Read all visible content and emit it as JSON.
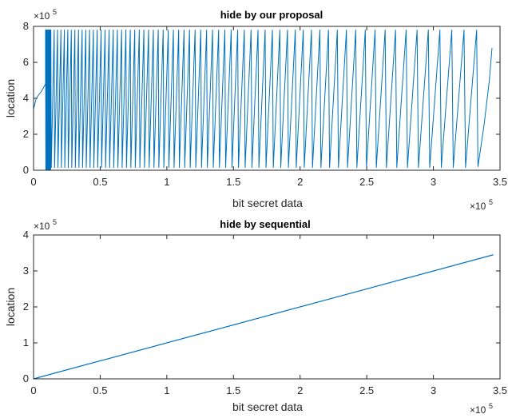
{
  "chart_data": [
    {
      "type": "line",
      "title": "hide by our proposal",
      "xlabel": "bit secret data",
      "ylabel": "location",
      "xlim": [
        0,
        3.5
      ],
      "ylim": [
        0,
        8
      ],
      "x_multiplier": "×10",
      "x_exponent": "5",
      "y_multiplier": "×10",
      "y_exponent": "5",
      "xticks": [
        "0",
        "0.5",
        "1",
        "1.5",
        "2",
        "2.5",
        "3",
        "3.5"
      ],
      "yticks": [
        "0",
        "2",
        "4",
        "6",
        "8"
      ],
      "x_range_data": [
        0,
        3.44
      ],
      "y_range_data": [
        0,
        7.8
      ],
      "pattern": "sawtooth; dense wraparound cycles near x≈0.08–0.12, widening cycle length toward x≈3.44",
      "series": [
        {
          "color": "#0072BD"
        }
      ]
    },
    {
      "type": "line",
      "title": "hide by sequential",
      "xlabel": "bit secret data",
      "ylabel": "location",
      "xlim": [
        0,
        3.5
      ],
      "ylim": [
        0,
        4
      ],
      "x_multiplier": "×10",
      "x_exponent": "5",
      "y_multiplier": "×10",
      "y_exponent": "5",
      "xticks": [
        "0",
        "0.5",
        "1",
        "1.5",
        "2",
        "2.5",
        "3",
        "3.5"
      ],
      "yticks": [
        "0",
        "1",
        "2",
        "3",
        "4"
      ],
      "series": [
        {
          "x": [
            0,
            3.45
          ],
          "y": [
            0,
            3.45
          ],
          "color": "#0072BD"
        }
      ]
    }
  ]
}
